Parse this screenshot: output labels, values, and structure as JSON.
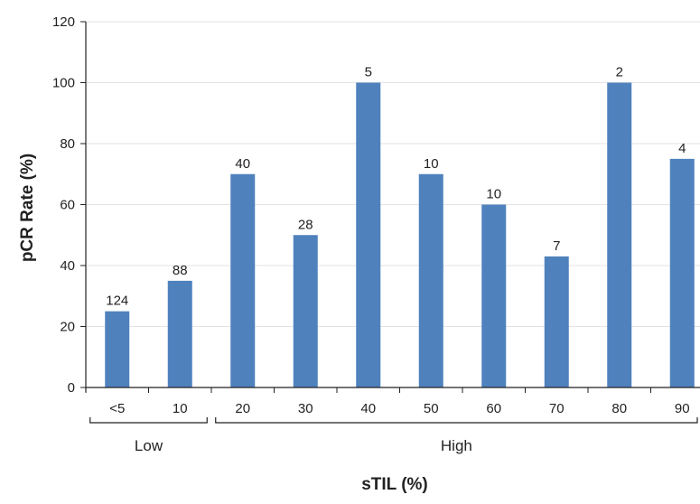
{
  "chart_data": {
    "type": "bar",
    "title": "",
    "xlabel": "sTIL (%)",
    "ylabel": "pCR Rate (%)",
    "ylim": [
      0,
      120
    ],
    "yticks": [
      0,
      20,
      40,
      60,
      80,
      100,
      120
    ],
    "grid": true,
    "categories": [
      "<5",
      "10",
      "20",
      "30",
      "40",
      "50",
      "60",
      "70",
      "80",
      "90"
    ],
    "values": [
      25,
      35,
      70,
      50,
      100,
      70,
      60,
      43,
      100,
      75
    ],
    "data_labels": [
      "124",
      "88",
      "40",
      "28",
      "5",
      "10",
      "10",
      "7",
      "2",
      "4"
    ],
    "groups": [
      {
        "label": "Low",
        "categories": [
          "<5",
          "10"
        ]
      },
      {
        "label": "High",
        "categories": [
          "20",
          "30",
          "40",
          "50",
          "60",
          "70",
          "80",
          "90"
        ]
      }
    ],
    "colors": {
      "bar": "#4f81bd",
      "grid": "#e3e3e3",
      "axis": "#222222"
    }
  }
}
